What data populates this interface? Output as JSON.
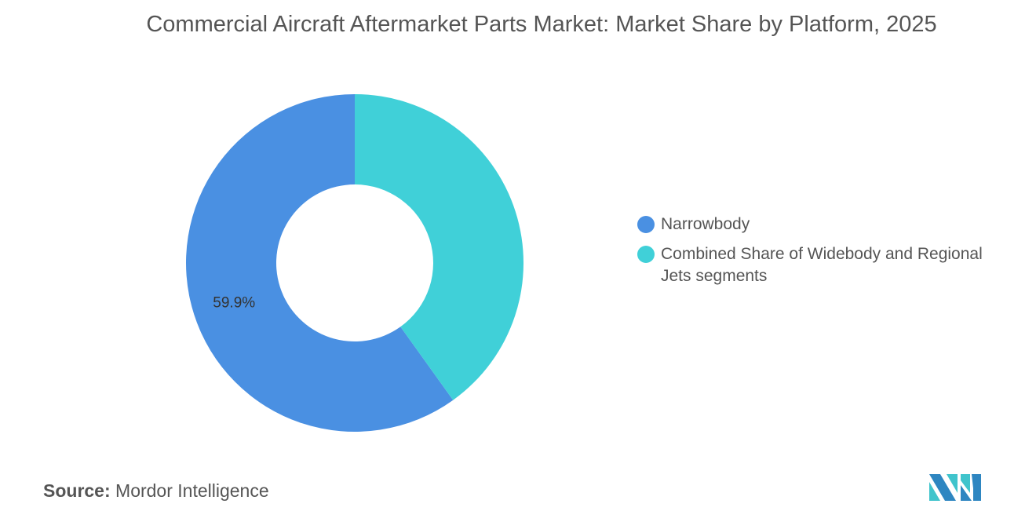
{
  "chart_data": {
    "type": "pie",
    "title": "Commercial Aircraft Aftermarket Parts Market: Market Share by Platform, 2025",
    "donut": true,
    "categories": [
      "Narrowbody",
      "Combined Share of Widebody and Regional Jets segments"
    ],
    "values": [
      59.9,
      40.1
    ],
    "colors": [
      "#4a90e2",
      "#40d0d8"
    ],
    "data_labels": [
      "59.9%",
      ""
    ],
    "legend_position": "right"
  },
  "source": {
    "label": "Source:",
    "value": "Mordor Intelligence"
  },
  "logo": {
    "text": "Mordor Intelligence",
    "colors": [
      "#2e86c1",
      "#40c4cc"
    ]
  }
}
